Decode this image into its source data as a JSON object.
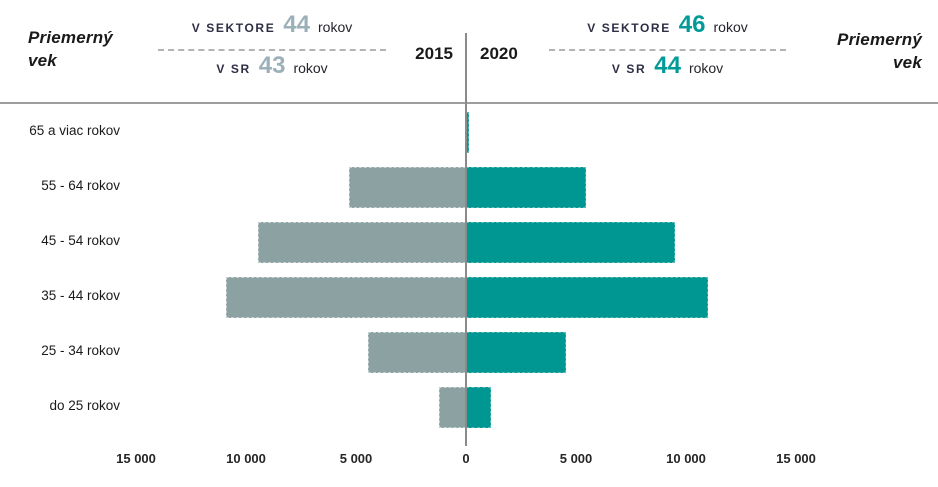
{
  "header": {
    "title_left": "Priemerný vek",
    "title_right": "Priemerný vek",
    "year_left": "2015",
    "year_right": "2020",
    "stats_left": {
      "row1_label": "V SEKTORE",
      "row1_value": "44",
      "row1_unit": "rokov",
      "row2_label": "V SR",
      "row2_value": "43",
      "row2_unit": "rokov"
    },
    "stats_right": {
      "row1_label": "V SEKTORE",
      "row1_value": "46",
      "row1_unit": "rokov",
      "row2_label": "V SR",
      "row2_value": "44",
      "row2_unit": "rokov"
    }
  },
  "colors": {
    "teal": "#009692",
    "gray_2015": "#8CA2A2",
    "muted_value": "#9CB0BA",
    "teal_value": "#009B98",
    "dark_text": "#1A1A1A",
    "axis_line": "#8A8A8A"
  },
  "chart_data": {
    "type": "bar",
    "subtype": "population_pyramid_diverging",
    "categories": [
      "65 a viac rokov",
      "55 - 64 rokov",
      "45 - 54 rokov",
      "35 - 44 rokov",
      "25 - 34 rokov",
      "do 25 rokov"
    ],
    "series": [
      {
        "name": "2015",
        "side": "left",
        "color": "#8CA2A2",
        "values": [
          60,
          5300,
          9450,
          10900,
          4450,
          1250
        ]
      },
      {
        "name": "2020",
        "side": "right",
        "color": "#009692",
        "values": [
          140,
          5450,
          9500,
          11000,
          4550,
          1150
        ]
      }
    ],
    "x_ticks": [
      "15 000",
      "10 000",
      "5 000",
      "0",
      "5 000",
      "10 000",
      "15 000"
    ],
    "x_max": 15000,
    "grid": false,
    "avg_age": {
      "sector_2015": 44,
      "sr_2015": 43,
      "sector_2020": 46,
      "sr_2020": 44
    }
  }
}
